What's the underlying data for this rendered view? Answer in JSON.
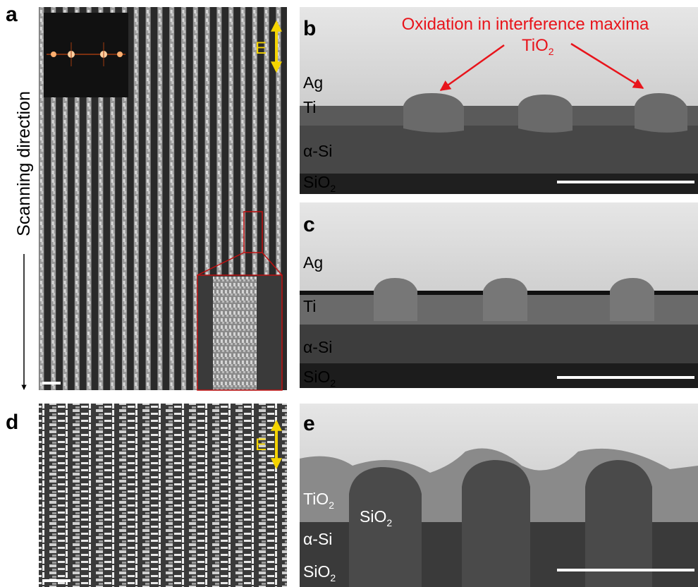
{
  "panels": {
    "a": {
      "label": "a",
      "axis_label": "Scanning direction",
      "field_label": "E"
    },
    "b": {
      "label": "b",
      "annotation": "Oxidation in interference maxima",
      "annotation_material": {
        "text": "TiO",
        "subscript": "2"
      },
      "layers": [
        {
          "text": "Ag"
        },
        {
          "text": "Ti"
        },
        {
          "text": "α-Si"
        },
        {
          "text": "SiO",
          "subscript": "2"
        }
      ]
    },
    "c": {
      "label": "c",
      "layers": [
        {
          "text": "Ag"
        },
        {
          "text": "Ti"
        },
        {
          "text": "α-Si"
        },
        {
          "text": "SiO",
          "subscript": "2"
        }
      ]
    },
    "d": {
      "label": "d",
      "field_label": "E"
    },
    "e": {
      "label": "e",
      "layers": [
        {
          "text": "TiO",
          "subscript": "2"
        },
        {
          "text": "SiO",
          "subscript": "2"
        },
        {
          "text": "α-Si"
        },
        {
          "text": "SiO",
          "subscript": "2"
        }
      ]
    }
  }
}
